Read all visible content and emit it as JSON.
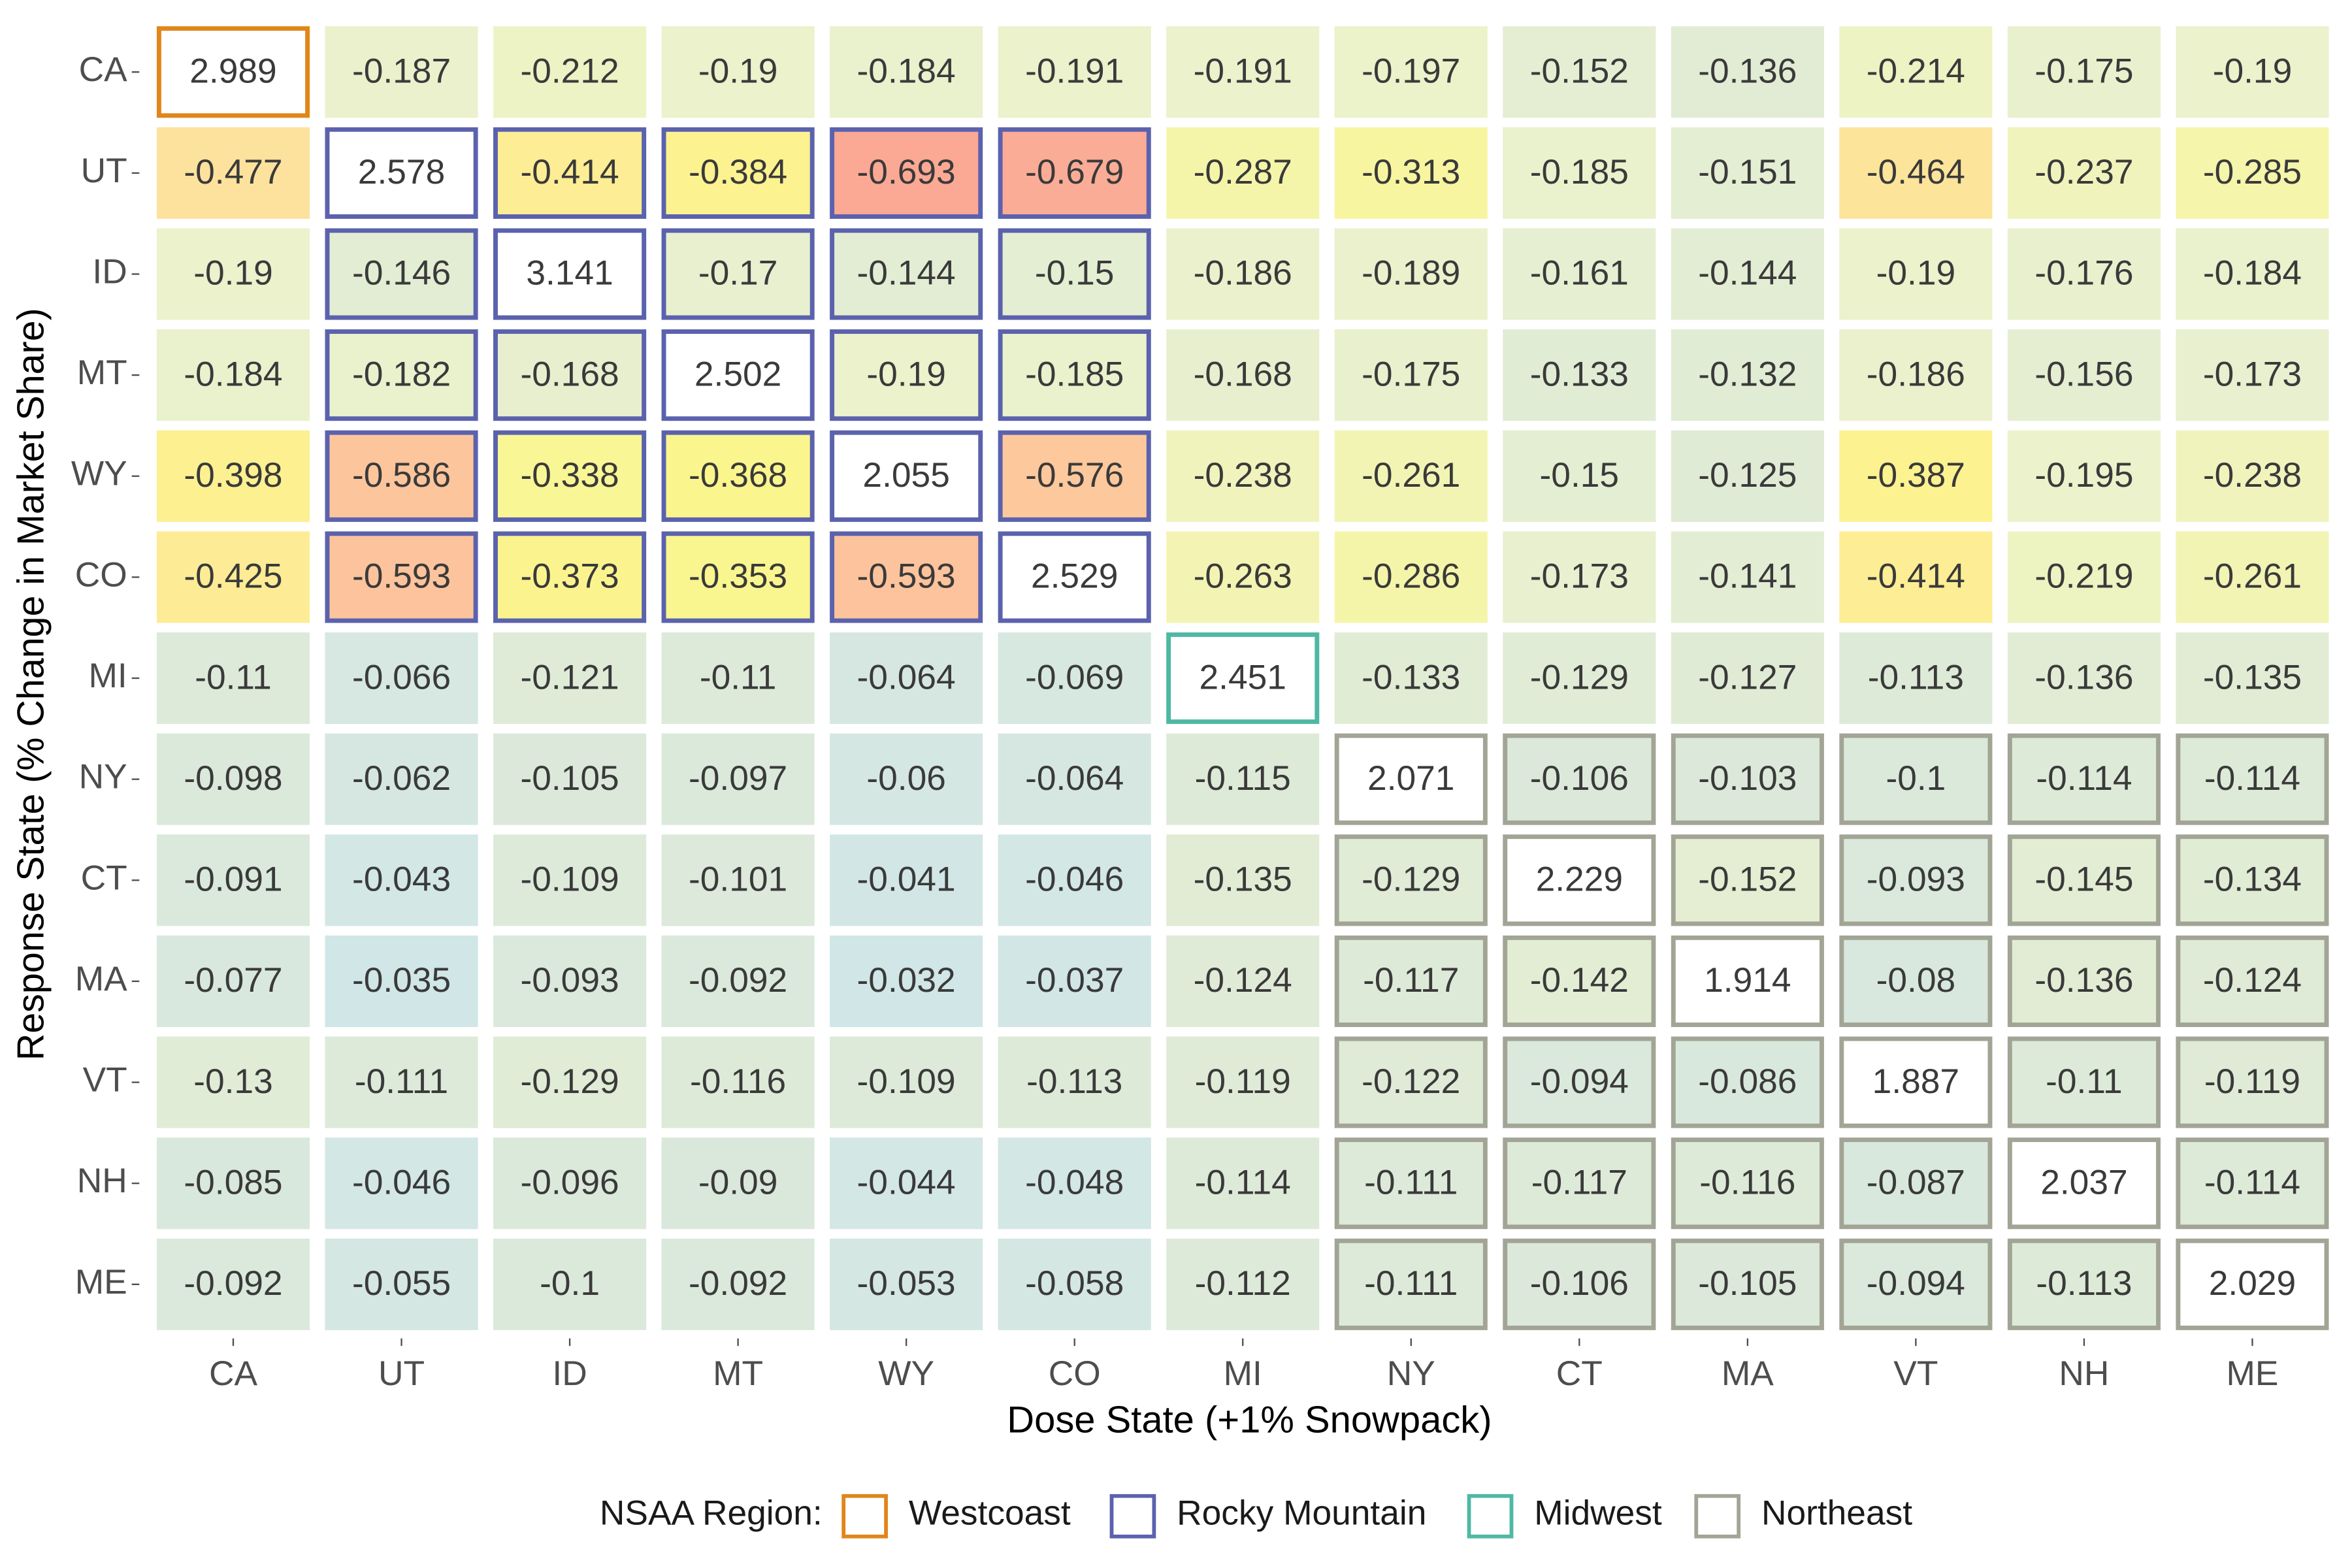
{
  "chart_data": {
    "type": "heatmap",
    "x_title": "Dose State (+1% Snowpack)",
    "y_title": "Response State (% Change in Market Share)",
    "x_categories": [
      "CA",
      "UT",
      "ID",
      "MT",
      "WY",
      "CO",
      "MI",
      "NY",
      "CT",
      "MA",
      "VT",
      "NH",
      "ME"
    ],
    "y_categories": [
      "CA",
      "UT",
      "ID",
      "MT",
      "WY",
      "CO",
      "MI",
      "NY",
      "CT",
      "MA",
      "VT",
      "NH",
      "ME"
    ],
    "values": [
      [
        2.989,
        -0.187,
        -0.212,
        -0.19,
        -0.184,
        -0.191,
        -0.191,
        -0.197,
        -0.152,
        -0.136,
        -0.214,
        -0.175,
        -0.19
      ],
      [
        -0.477,
        2.578,
        -0.414,
        -0.384,
        -0.693,
        -0.679,
        -0.287,
        -0.313,
        -0.185,
        -0.151,
        -0.464,
        -0.237,
        -0.285
      ],
      [
        -0.19,
        -0.146,
        3.141,
        -0.17,
        -0.144,
        -0.15,
        -0.186,
        -0.189,
        -0.161,
        -0.144,
        -0.19,
        -0.176,
        -0.184
      ],
      [
        -0.184,
        -0.182,
        -0.168,
        2.502,
        -0.19,
        -0.185,
        -0.168,
        -0.175,
        -0.133,
        -0.132,
        -0.186,
        -0.156,
        -0.173
      ],
      [
        -0.398,
        -0.586,
        -0.338,
        -0.368,
        2.055,
        -0.576,
        -0.238,
        -0.261,
        -0.15,
        -0.125,
        -0.387,
        -0.195,
        -0.238
      ],
      [
        -0.425,
        -0.593,
        -0.373,
        -0.353,
        -0.593,
        2.529,
        -0.263,
        -0.286,
        -0.173,
        -0.141,
        -0.414,
        -0.219,
        -0.261
      ],
      [
        -0.11,
        -0.066,
        -0.121,
        -0.11,
        -0.064,
        -0.069,
        2.451,
        -0.133,
        -0.129,
        -0.127,
        -0.113,
        -0.136,
        -0.135
      ],
      [
        -0.098,
        -0.062,
        -0.105,
        -0.097,
        -0.06,
        -0.064,
        -0.115,
        2.071,
        -0.106,
        -0.103,
        -0.1,
        -0.114,
        -0.114
      ],
      [
        -0.091,
        -0.043,
        -0.109,
        -0.101,
        -0.041,
        -0.046,
        -0.135,
        -0.129,
        2.229,
        -0.152,
        -0.093,
        -0.145,
        -0.134
      ],
      [
        -0.077,
        -0.035,
        -0.093,
        -0.092,
        -0.032,
        -0.037,
        -0.124,
        -0.117,
        -0.142,
        1.914,
        -0.08,
        -0.136,
        -0.124
      ],
      [
        -0.13,
        -0.111,
        -0.129,
        -0.116,
        -0.109,
        -0.113,
        -0.119,
        -0.122,
        -0.094,
        -0.086,
        1.887,
        -0.11,
        -0.119
      ],
      [
        -0.085,
        -0.046,
        -0.096,
        -0.09,
        -0.044,
        -0.048,
        -0.114,
        -0.111,
        -0.117,
        -0.116,
        -0.087,
        2.037,
        -0.114
      ],
      [
        -0.092,
        -0.055,
        -0.1,
        -0.092,
        -0.053,
        -0.058,
        -0.112,
        -0.111,
        -0.106,
        -0.105,
        -0.094,
        -0.113,
        2.029
      ]
    ],
    "legend_title": "NSAA Region:",
    "regions": [
      {
        "name": "Westcoast",
        "color": "#e0861a",
        "states": [
          "CA"
        ]
      },
      {
        "name": "Rocky Mountain",
        "color": "#5b62ad",
        "states": [
          "UT",
          "ID",
          "MT",
          "WY",
          "CO"
        ]
      },
      {
        "name": "Midwest",
        "color": "#4fb8a3",
        "states": [
          "MI"
        ]
      },
      {
        "name": "Northeast",
        "color": "#a2a595",
        "states": [
          "NY",
          "CT",
          "MA",
          "VT",
          "NH",
          "ME"
        ]
      }
    ]
  }
}
